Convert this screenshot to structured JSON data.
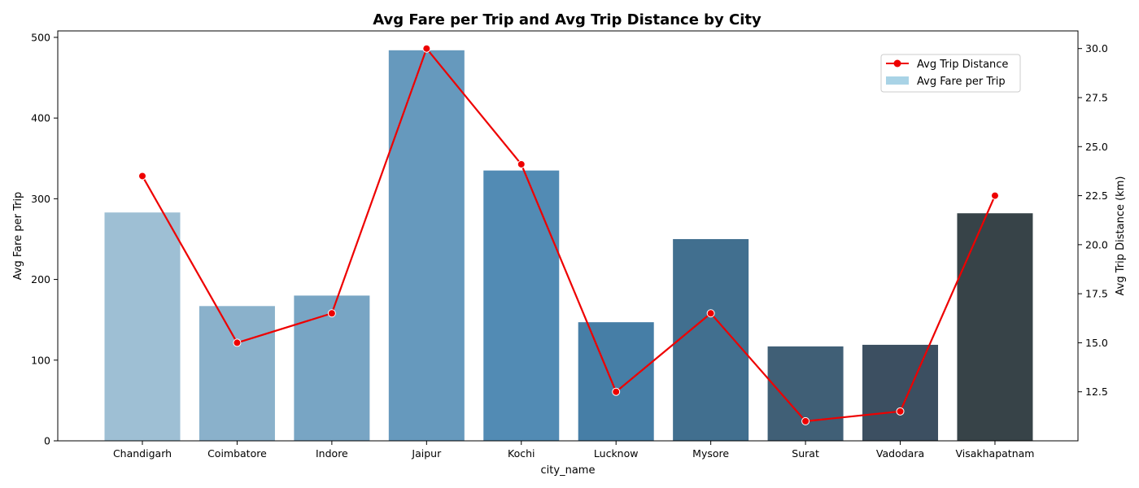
{
  "chart_data": {
    "type": "bar",
    "title": "Avg Fare per Trip and Avg Trip Distance by City",
    "xlabel": "city_name",
    "ylabel": "Avg Fare per Trip",
    "y2label": "Avg Trip Distance (km)",
    "categories": [
      "Chandigarh",
      "Coimbatore",
      "Indore",
      "Jaipur",
      "Kochi",
      "Lucknow",
      "Mysore",
      "Surat",
      "Vadodara",
      "Visakhapatnam"
    ],
    "ylim": [
      0,
      508
    ],
    "y2lim": [
      10.0,
      30.9
    ],
    "yticks": [
      0,
      100,
      200,
      300,
      400,
      500
    ],
    "y2ticks": [
      12.5,
      15.0,
      17.5,
      20.0,
      22.5,
      25.0,
      27.5,
      30.0
    ],
    "y2tick_labels": [
      "12.5",
      "15.0",
      "17.5",
      "20.0",
      "22.5",
      "25.0",
      "27.5",
      "30.0"
    ],
    "legend_position": "top-right",
    "grid": false,
    "series": [
      {
        "name": "Avg Fare per Trip",
        "type": "bar",
        "axis": "left",
        "values": [
          283,
          167,
          180,
          484,
          335,
          147,
          250,
          117,
          119,
          282
        ],
        "colors": [
          "#9ebfd4",
          "#8ab1cb",
          "#78a5c4",
          "#6699bd",
          "#528bb4",
          "#467ea6",
          "#416f8f",
          "#405f76",
          "#3c4f61",
          "#374348"
        ],
        "legend_color": "#a9d3e6"
      },
      {
        "name": "Avg Trip Distance",
        "type": "line",
        "axis": "right",
        "values": [
          23.5,
          15.0,
          16.5,
          30.0,
          24.1,
          12.5,
          16.5,
          11.0,
          11.5,
          22.5
        ],
        "color": "#ee0000"
      }
    ]
  }
}
